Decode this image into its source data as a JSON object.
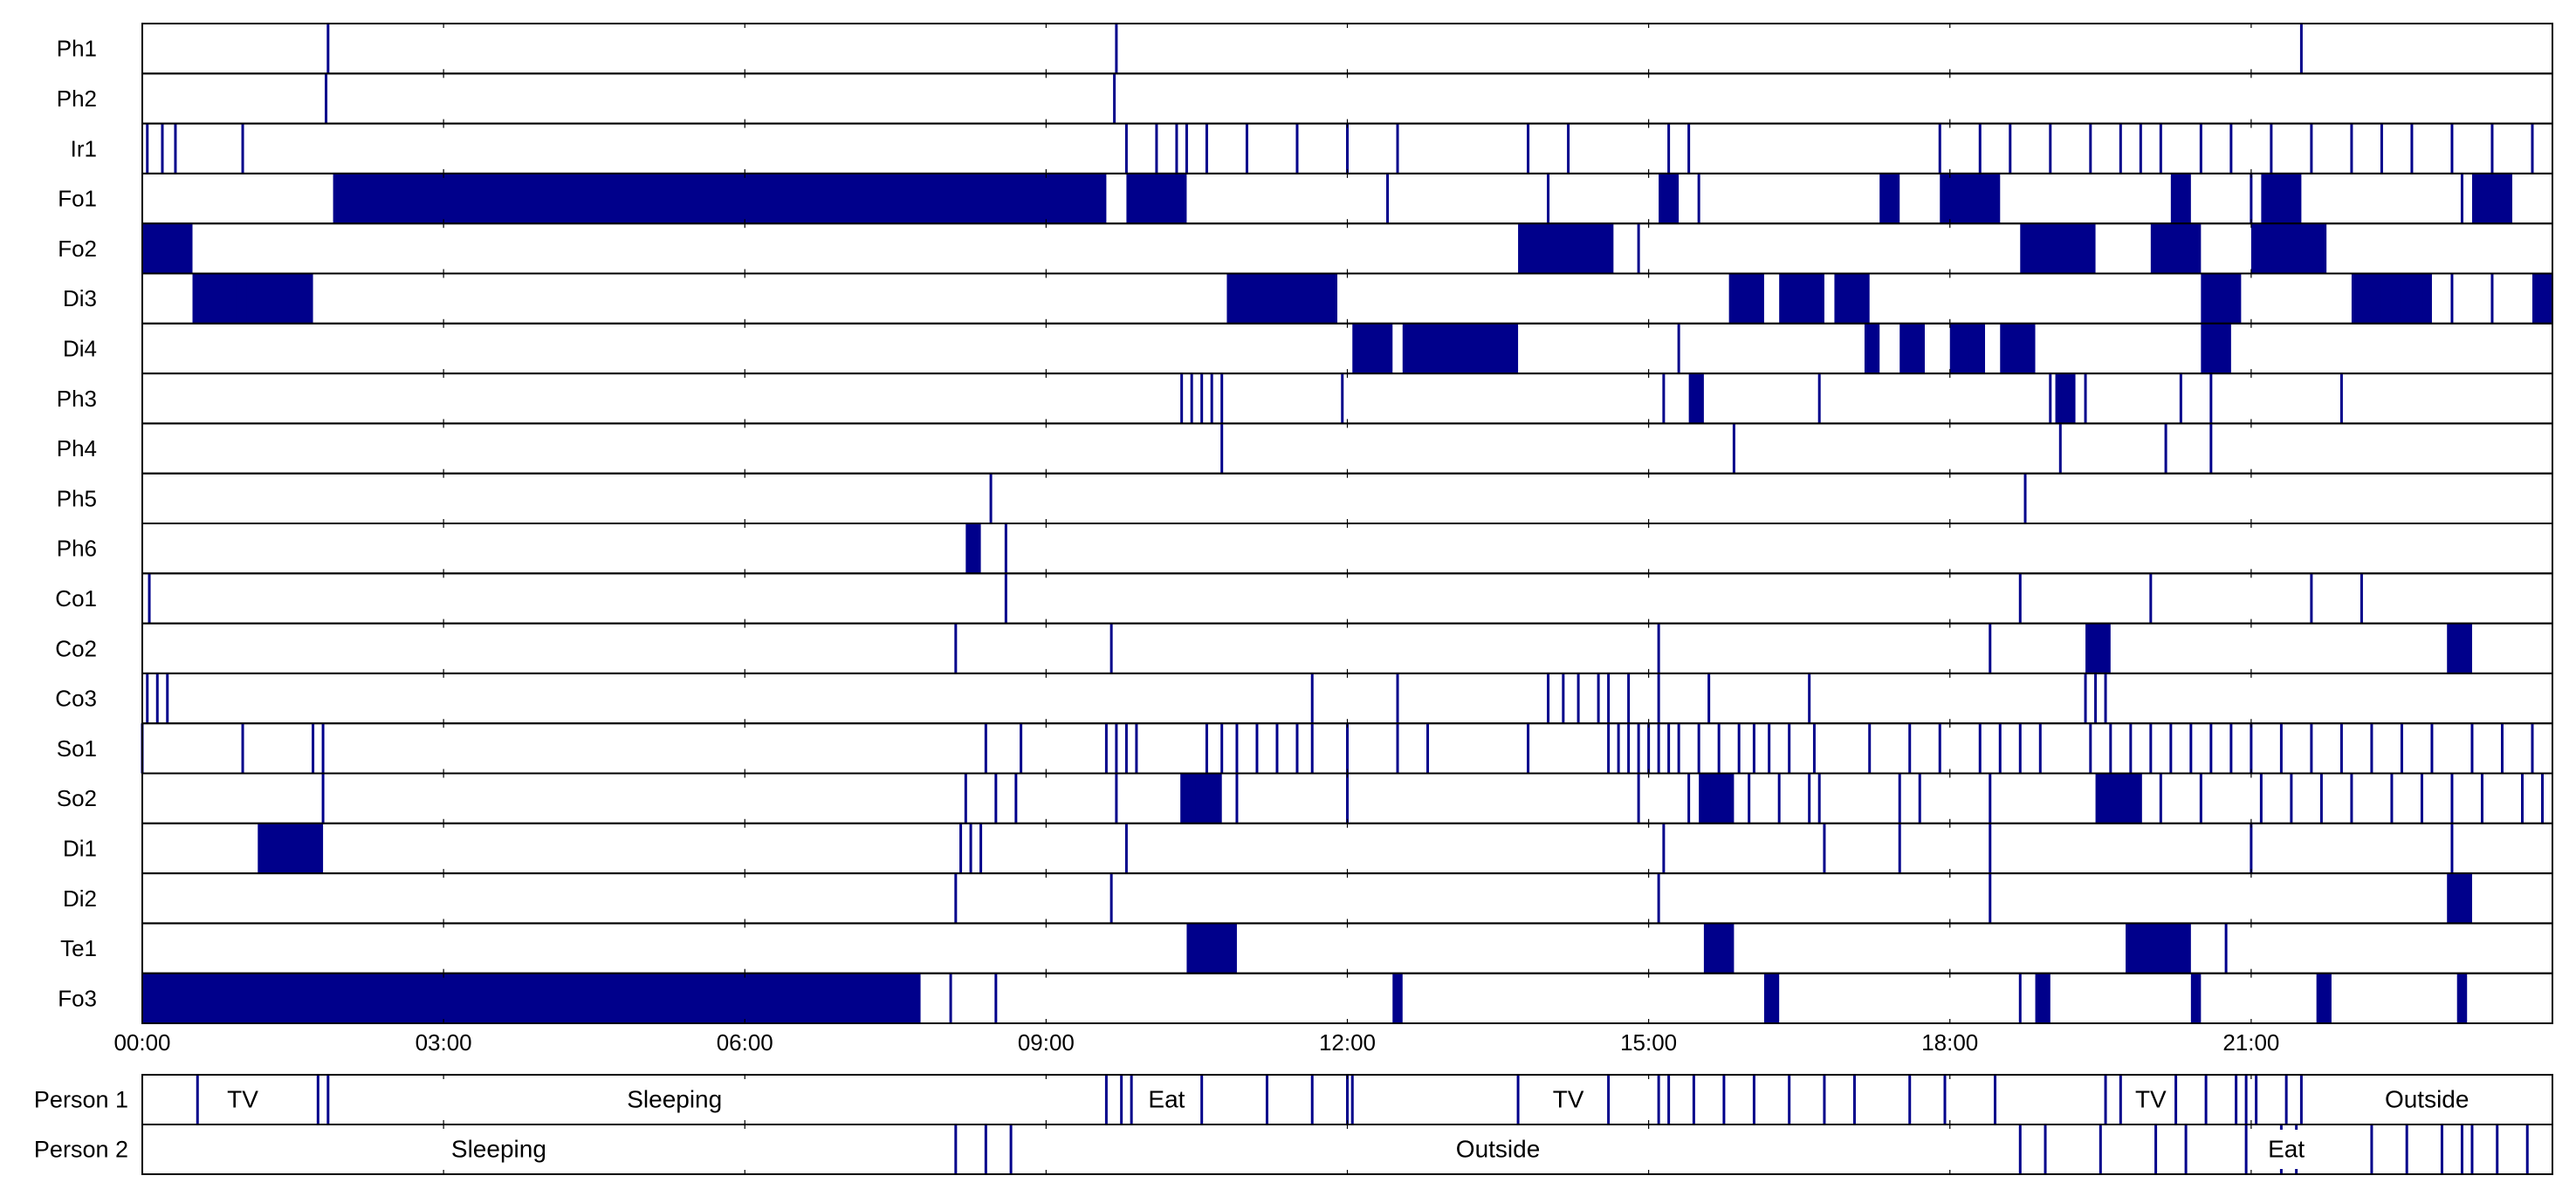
{
  "colors": {
    "event": "#00008B",
    "frame": "#000000",
    "background": "#ffffff"
  },
  "chart_data": {
    "type": "event-raster",
    "x_range_hours": [
      0,
      24
    ],
    "x_tick_labels": [
      "00:00",
      "03:00",
      "06:00",
      "09:00",
      "12:00",
      "15:00",
      "18:00",
      "21:00"
    ],
    "x_tick_hours": [
      0,
      3,
      6,
      9,
      12,
      15,
      18,
      21
    ],
    "sensors": [
      {
        "name": "Ph1",
        "events": [
          1.85,
          9.7,
          21.5
        ]
      },
      {
        "name": "Ph2",
        "events": [
          1.83,
          9.68
        ]
      },
      {
        "name": "Ir1",
        "events": [
          0.05,
          0.2,
          0.33,
          1.0,
          9.8,
          10.1,
          10.3,
          10.4,
          10.6,
          11.0,
          11.5,
          12.0,
          12.5,
          13.8,
          14.2,
          15.2,
          15.4,
          17.9,
          18.3,
          18.6,
          19.0,
          19.4,
          19.7,
          19.9,
          20.1,
          20.5,
          20.8,
          21.2,
          21.6,
          22.0,
          22.3,
          22.6,
          23.0,
          23.4,
          23.8
        ]
      },
      {
        "name": "Fo1",
        "events": [
          12.4,
          14.0,
          15.5,
          18.0,
          21.0,
          23.1
        ],
        "blocks": [
          [
            1.9,
            9.6
          ],
          [
            9.8,
            10.4
          ],
          [
            15.1,
            15.3
          ],
          [
            17.3,
            17.5
          ],
          [
            17.9,
            18.5
          ],
          [
            20.2,
            20.4
          ],
          [
            21.1,
            21.5
          ],
          [
            23.2,
            23.6
          ]
        ]
      },
      {
        "name": "Fo2",
        "events": [
          14.9
        ],
        "blocks": [
          [
            0.0,
            0.5
          ],
          [
            13.7,
            14.65
          ],
          [
            18.7,
            19.45
          ],
          [
            20.0,
            20.5
          ],
          [
            21.0,
            21.75
          ]
        ]
      },
      {
        "name": "Di3",
        "events": [
          0.95,
          1.05,
          22.3,
          22.5,
          22.7,
          23.0,
          23.4
        ],
        "blocks": [
          [
            0.5,
            1.7
          ],
          [
            10.8,
            11.9
          ],
          [
            15.8,
            16.15
          ],
          [
            16.3,
            16.75
          ],
          [
            16.85,
            17.2
          ],
          [
            20.5,
            20.9
          ],
          [
            22.0,
            22.8
          ],
          [
            23.8,
            24.0
          ]
        ]
      },
      {
        "name": "Di4",
        "events": [
          15.3,
          18.2
        ],
        "blocks": [
          [
            12.05,
            12.45
          ],
          [
            12.55,
            13.7
          ],
          [
            17.15,
            17.3
          ],
          [
            17.5,
            17.75
          ],
          [
            18.0,
            18.35
          ],
          [
            18.5,
            18.85
          ],
          [
            20.5,
            20.8
          ]
        ]
      },
      {
        "name": "Ph3",
        "events": [
          10.35,
          10.45,
          10.55,
          10.65,
          10.75,
          11.95,
          15.15,
          15.5,
          16.7,
          19.0,
          19.1,
          19.2,
          19.35,
          20.3,
          20.6,
          21.9
        ],
        "blocks": [
          [
            15.4,
            15.55
          ],
          [
            19.05,
            19.25
          ]
        ]
      },
      {
        "name": "Ph4",
        "events": [
          10.75,
          15.85,
          19.1,
          20.15,
          20.6
        ]
      },
      {
        "name": "Ph5",
        "events": [
          8.45,
          18.75
        ]
      },
      {
        "name": "Ph6",
        "events": [
          8.6
        ],
        "blocks": [
          [
            8.2,
            8.35
          ]
        ]
      },
      {
        "name": "Co1",
        "events": [
          0.07,
          8.6,
          18.7,
          20.0,
          21.6,
          22.1
        ]
      },
      {
        "name": "Co2",
        "events": [
          8.1,
          9.65,
          15.1,
          18.4
        ],
        "blocks": [
          [
            19.35,
            19.6
          ],
          [
            22.95,
            23.2
          ]
        ]
      },
      {
        "name": "Co3",
        "events": [
          0.05,
          0.15,
          0.25,
          11.65,
          12.5,
          14.0,
          14.15,
          14.3,
          14.5,
          14.6,
          14.8,
          15.1,
          15.6,
          16.6,
          19.35,
          19.45,
          19.55
        ]
      },
      {
        "name": "So1",
        "events": [
          0.0,
          1.0,
          1.7,
          1.8,
          8.4,
          8.75,
          9.6,
          9.7,
          9.8,
          9.9,
          10.6,
          10.75,
          10.9,
          11.1,
          11.3,
          11.5,
          11.65,
          12.0,
          12.5,
          12.8,
          13.8,
          14.6,
          14.7,
          14.8,
          14.9,
          15.0,
          15.1,
          15.2,
          15.3,
          15.5,
          15.7,
          15.9,
          16.05,
          16.2,
          16.4,
          16.65,
          17.2,
          17.6,
          17.9,
          18.3,
          18.5,
          18.7,
          18.9,
          19.4,
          19.6,
          19.8,
          20.0,
          20.2,
          20.4,
          20.6,
          20.8,
          21.0,
          21.3,
          21.6,
          21.9,
          22.2,
          22.5,
          22.8,
          23.2,
          23.5,
          23.8
        ]
      },
      {
        "name": "So2",
        "events": [
          1.8,
          8.2,
          8.5,
          8.7,
          9.7,
          10.35,
          10.5,
          10.7,
          10.9,
          12.0,
          14.9,
          15.4,
          15.6,
          16.0,
          16.3,
          16.6,
          16.7,
          17.5,
          17.7,
          18.4,
          19.5,
          19.9,
          20.1,
          20.5,
          21.1,
          21.4,
          21.7,
          22.0,
          22.4,
          22.7,
          23.0,
          23.3,
          23.7,
          23.9
        ],
        "blocks": [
          [
            10.35,
            10.75
          ],
          [
            15.5,
            15.85
          ],
          [
            19.45,
            19.9
          ]
        ]
      },
      {
        "name": "Di1",
        "events": [
          8.15,
          8.25,
          8.35,
          9.8,
          15.15,
          16.75,
          17.5,
          18.4,
          21.0,
          23.0
        ],
        "blocks": [
          [
            1.15,
            1.8
          ]
        ]
      },
      {
        "name": "Di2",
        "events": [
          8.1,
          9.65,
          15.1,
          18.4
        ],
        "blocks": [
          [
            22.95,
            23.2
          ]
        ]
      },
      {
        "name": "Te1",
        "events": [
          20.75
        ],
        "blocks": [
          [
            10.4,
            10.9
          ],
          [
            15.55,
            15.85
          ],
          [
            19.75,
            20.4
          ]
        ]
      },
      {
        "name": "Fo3",
        "events": [
          8.05,
          8.5,
          18.7
        ],
        "blocks": [
          [
            0.0,
            7.75
          ],
          [
            12.45,
            12.55
          ],
          [
            16.15,
            16.3
          ],
          [
            18.85,
            19.0
          ],
          [
            20.4,
            20.5
          ],
          [
            21.65,
            21.8
          ],
          [
            23.05,
            23.15
          ]
        ]
      }
    ],
    "persons": [
      {
        "name": "Person 1",
        "events": [
          0.55,
          1.75,
          1.85,
          9.6,
          9.75,
          9.85,
          10.55,
          11.2,
          11.65,
          12.0,
          12.05,
          13.7,
          14.6,
          15.1,
          15.2,
          15.45,
          15.75,
          16.05,
          16.4,
          16.75,
          17.05,
          17.6,
          17.95,
          18.45,
          19.55,
          19.7,
          20.25,
          20.55,
          20.85,
          20.95,
          21.05,
          21.35,
          21.5
        ],
        "activities": [
          {
            "label": "TV",
            "hour": 1.0
          },
          {
            "label": "Sleeping",
            "hour": 5.3
          },
          {
            "label": "Eat",
            "hour": 10.2
          },
          {
            "label": "TV",
            "hour": 14.2
          },
          {
            "label": "TV",
            "hour": 20.0
          },
          {
            "label": "Outside",
            "hour": 22.75
          }
        ]
      },
      {
        "name": "Person 2",
        "events": [
          8.1,
          8.4,
          8.65,
          18.7,
          18.95,
          19.5,
          20.05,
          20.35,
          20.95,
          21.3,
          21.45,
          22.2,
          22.55,
          22.9,
          23.1,
          23.2,
          23.45,
          23.75
        ],
        "activities": [
          {
            "label": "Sleeping",
            "hour": 3.55
          },
          {
            "label": "Outside",
            "hour": 13.5
          },
          {
            "label": "Eat",
            "hour": 21.35
          }
        ]
      }
    ]
  }
}
